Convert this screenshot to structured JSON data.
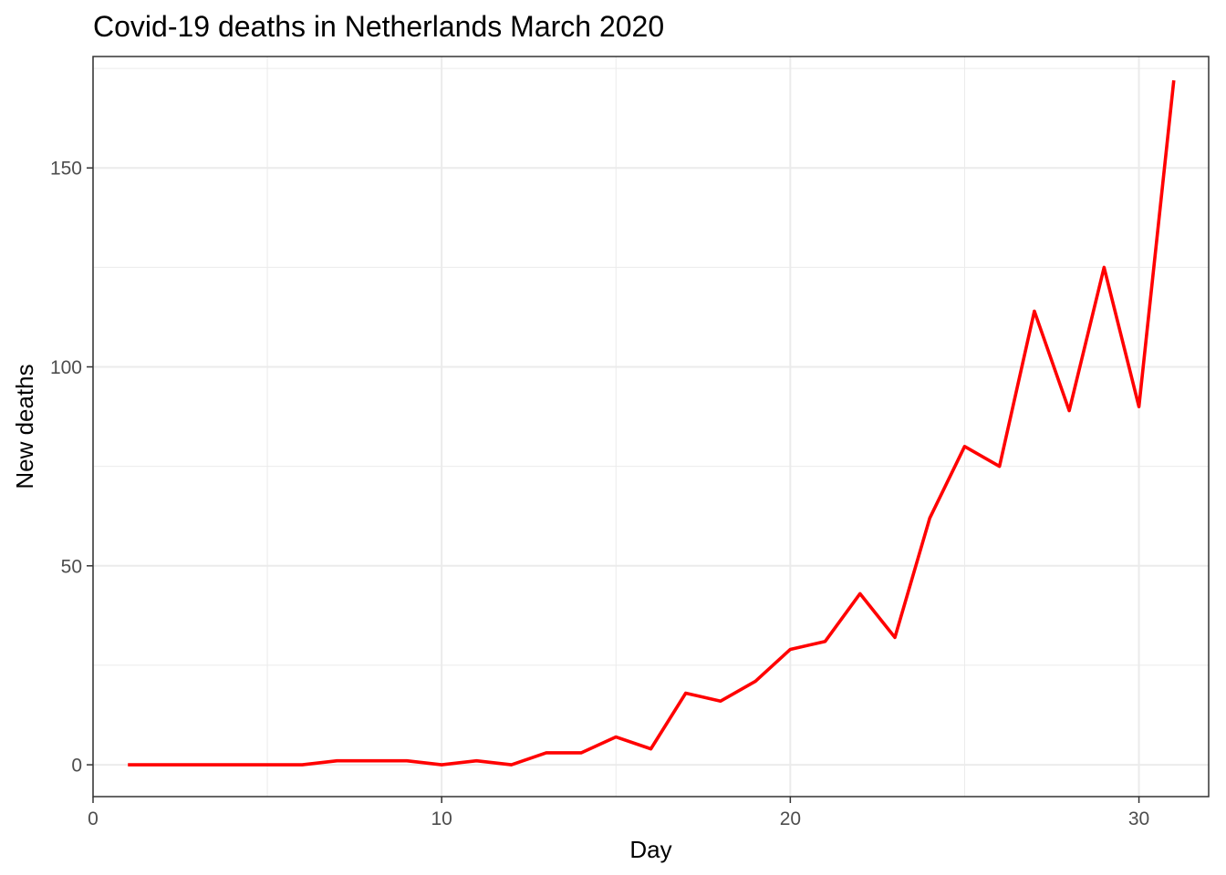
{
  "chart_data": {
    "type": "line",
    "title": "Covid-19 deaths in Netherlands March 2020",
    "xlabel": "Day",
    "ylabel": "New deaths",
    "xlim": [
      0,
      32
    ],
    "ylim": [
      -8,
      178
    ],
    "x_ticks": [
      0,
      10,
      20,
      30
    ],
    "y_ticks": [
      0,
      50,
      100,
      150
    ],
    "grid": true,
    "line_color": "#ff0000",
    "series": [
      {
        "x": [
          1,
          2,
          3,
          4,
          5,
          6,
          7,
          8,
          9,
          10,
          11,
          12,
          13,
          14,
          15,
          16,
          17,
          18,
          19,
          20,
          21,
          22,
          23,
          24,
          25,
          26,
          27,
          28,
          29,
          30,
          31
        ],
        "values": [
          0,
          0,
          0,
          0,
          0,
          0,
          1,
          1,
          1,
          0,
          1,
          0,
          3,
          3,
          7,
          4,
          18,
          16,
          21,
          29,
          31,
          43,
          32,
          62,
          80,
          75,
          114,
          89,
          125,
          90,
          172
        ]
      }
    ]
  }
}
